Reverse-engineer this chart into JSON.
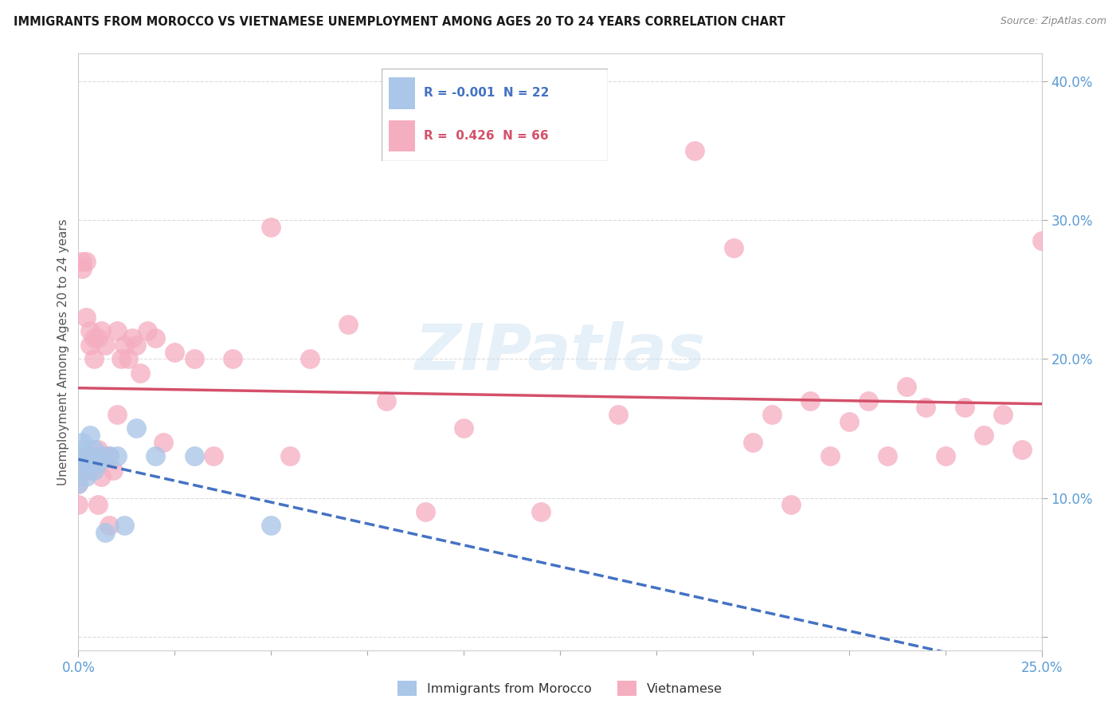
{
  "title": "IMMIGRANTS FROM MOROCCO VS VIETNAMESE UNEMPLOYMENT AMONG AGES 20 TO 24 YEARS CORRELATION CHART",
  "source": "Source: ZipAtlas.com",
  "ylabel": "Unemployment Among Ages 20 to 24 years",
  "xlim": [
    0.0,
    0.25
  ],
  "ylim": [
    -0.01,
    0.42
  ],
  "morocco_R": "-0.001",
  "morocco_N": "22",
  "vietnamese_R": "0.426",
  "vietnamese_N": "66",
  "morocco_color": "#aac6e8",
  "vietnamese_color": "#f5adc0",
  "morocco_line_color": "#4472c4",
  "vietnamese_line_color": "#d4506a",
  "bg_color": "#ffffff",
  "watermark": "ZIPatlas",
  "grid_color": "#cccccc",
  "tick_color": "#5b9bd5",
  "title_color": "#1a1a1a",
  "ylabel_color": "#555555",
  "morocco_x": [
    0.0,
    0.0,
    0.0,
    0.001,
    0.001,
    0.002,
    0.002,
    0.002,
    0.003,
    0.003,
    0.004,
    0.004,
    0.005,
    0.006,
    0.007,
    0.008,
    0.01,
    0.012,
    0.015,
    0.02,
    0.03,
    0.05
  ],
  "morocco_y": [
    0.13,
    0.12,
    0.11,
    0.14,
    0.135,
    0.13,
    0.125,
    0.115,
    0.145,
    0.13,
    0.135,
    0.12,
    0.125,
    0.13,
    0.075,
    0.13,
    0.13,
    0.08,
    0.15,
    0.13,
    0.13,
    0.08
  ],
  "vietnamese_x": [
    0.0,
    0.0,
    0.0,
    0.0,
    0.001,
    0.001,
    0.002,
    0.002,
    0.002,
    0.003,
    0.003,
    0.003,
    0.004,
    0.004,
    0.005,
    0.005,
    0.005,
    0.006,
    0.006,
    0.007,
    0.007,
    0.008,
    0.008,
    0.009,
    0.01,
    0.01,
    0.011,
    0.012,
    0.013,
    0.014,
    0.015,
    0.016,
    0.018,
    0.02,
    0.022,
    0.025,
    0.03,
    0.035,
    0.04,
    0.05,
    0.055,
    0.06,
    0.07,
    0.08,
    0.09,
    0.1,
    0.12,
    0.14,
    0.16,
    0.17,
    0.175,
    0.18,
    0.185,
    0.19,
    0.195,
    0.2,
    0.205,
    0.21,
    0.215,
    0.22,
    0.225,
    0.23,
    0.235,
    0.24,
    0.245,
    0.25
  ],
  "vietnamese_y": [
    0.13,
    0.12,
    0.11,
    0.095,
    0.27,
    0.265,
    0.27,
    0.23,
    0.12,
    0.22,
    0.21,
    0.12,
    0.215,
    0.2,
    0.215,
    0.135,
    0.095,
    0.22,
    0.115,
    0.21,
    0.13,
    0.13,
    0.08,
    0.12,
    0.22,
    0.16,
    0.2,
    0.21,
    0.2,
    0.215,
    0.21,
    0.19,
    0.22,
    0.215,
    0.14,
    0.205,
    0.2,
    0.13,
    0.2,
    0.295,
    0.13,
    0.2,
    0.225,
    0.17,
    0.09,
    0.15,
    0.09,
    0.16,
    0.35,
    0.28,
    0.14,
    0.16,
    0.095,
    0.17,
    0.13,
    0.155,
    0.17,
    0.13,
    0.18,
    0.165,
    0.13,
    0.165,
    0.145,
    0.16,
    0.135,
    0.285
  ]
}
